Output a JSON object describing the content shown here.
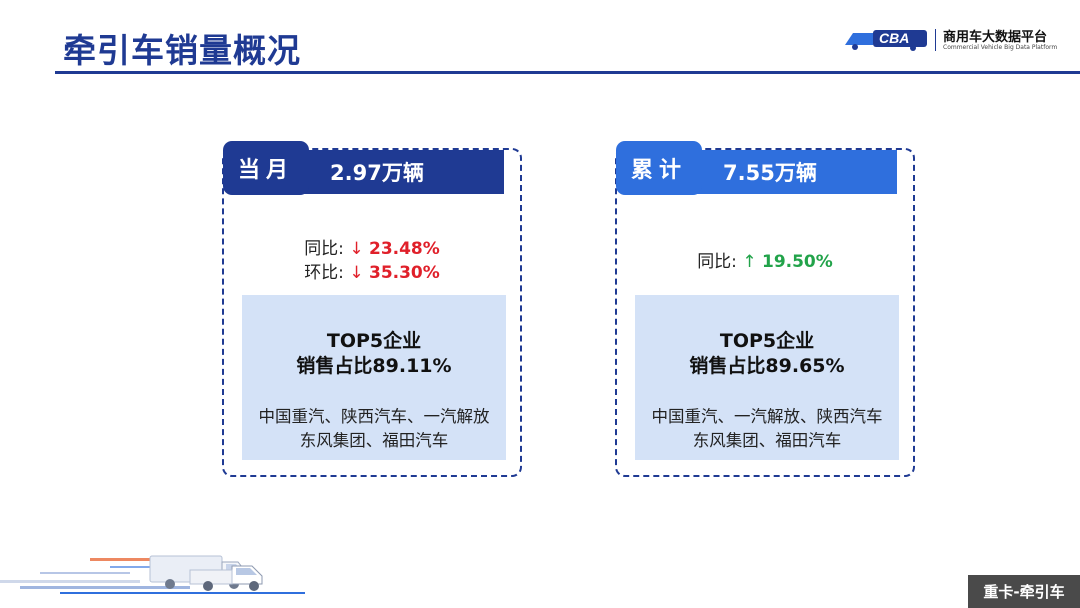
{
  "page": {
    "title": "牵引车销量概况"
  },
  "logo": {
    "mark": "CBA",
    "name_cn": "商用车大数据平台",
    "name_en": "Commercial Vehicle Big Data Platform"
  },
  "monthly": {
    "label": "当月",
    "sales": "2.97万辆",
    "yoy_label": "同比:",
    "yoy_arrow": "↓",
    "yoy_value": "23.48%",
    "mom_label": "环比:",
    "mom_arrow": "↓",
    "mom_value": "35.30%",
    "top5_line1": "TOP5企业",
    "top5_line2": "销售占比89.11%",
    "companies_line1": "中国重汽、陕西汽车、一汽解放",
    "companies_line2": "东风集团、福田汽车"
  },
  "cumulative": {
    "label": "累计",
    "sales": "7.55万辆",
    "yoy_label": "同比:",
    "yoy_arrow": "↑",
    "yoy_value": "19.50%",
    "top5_line1": "TOP5企业",
    "top5_line2": "销售占比89.65%",
    "companies_line1": "中国重汽、一汽解放、陕西汽车",
    "companies_line2": "东风集团、福田汽车"
  },
  "footer": {
    "tag": "重卡-牵引车"
  },
  "colors": {
    "primary": "#1f3a93",
    "secondary": "#2f6fdd",
    "panel": "#d4e2f7",
    "down": "#e0202a",
    "up": "#22a34a"
  }
}
